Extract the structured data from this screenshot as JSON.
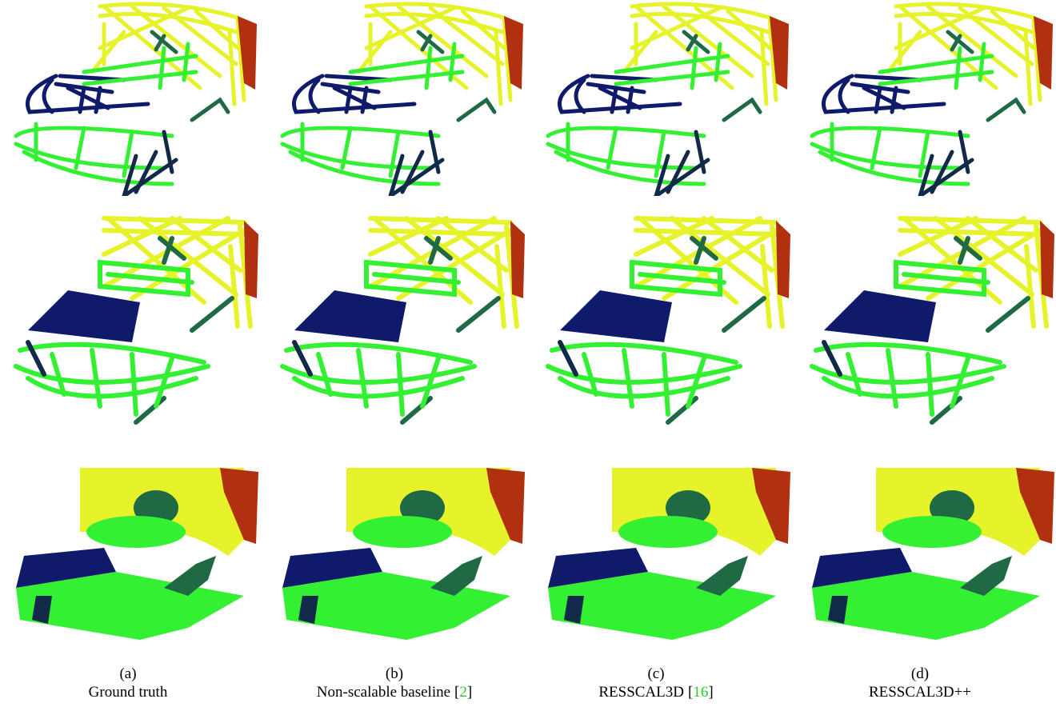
{
  "figure": {
    "captions": [
      {
        "label": "(a)",
        "name": "Ground truth"
      },
      {
        "label": "(b)",
        "name": "Non-scalable baseline",
        "citation": [
          "[",
          "2",
          "]"
        ]
      },
      {
        "label": "(c)",
        "name": "RESSCAL3D",
        "citation": [
          "[",
          "16",
          "]"
        ]
      },
      {
        "label": "(d)",
        "name": "RESSCAL3D++"
      }
    ]
  }
}
